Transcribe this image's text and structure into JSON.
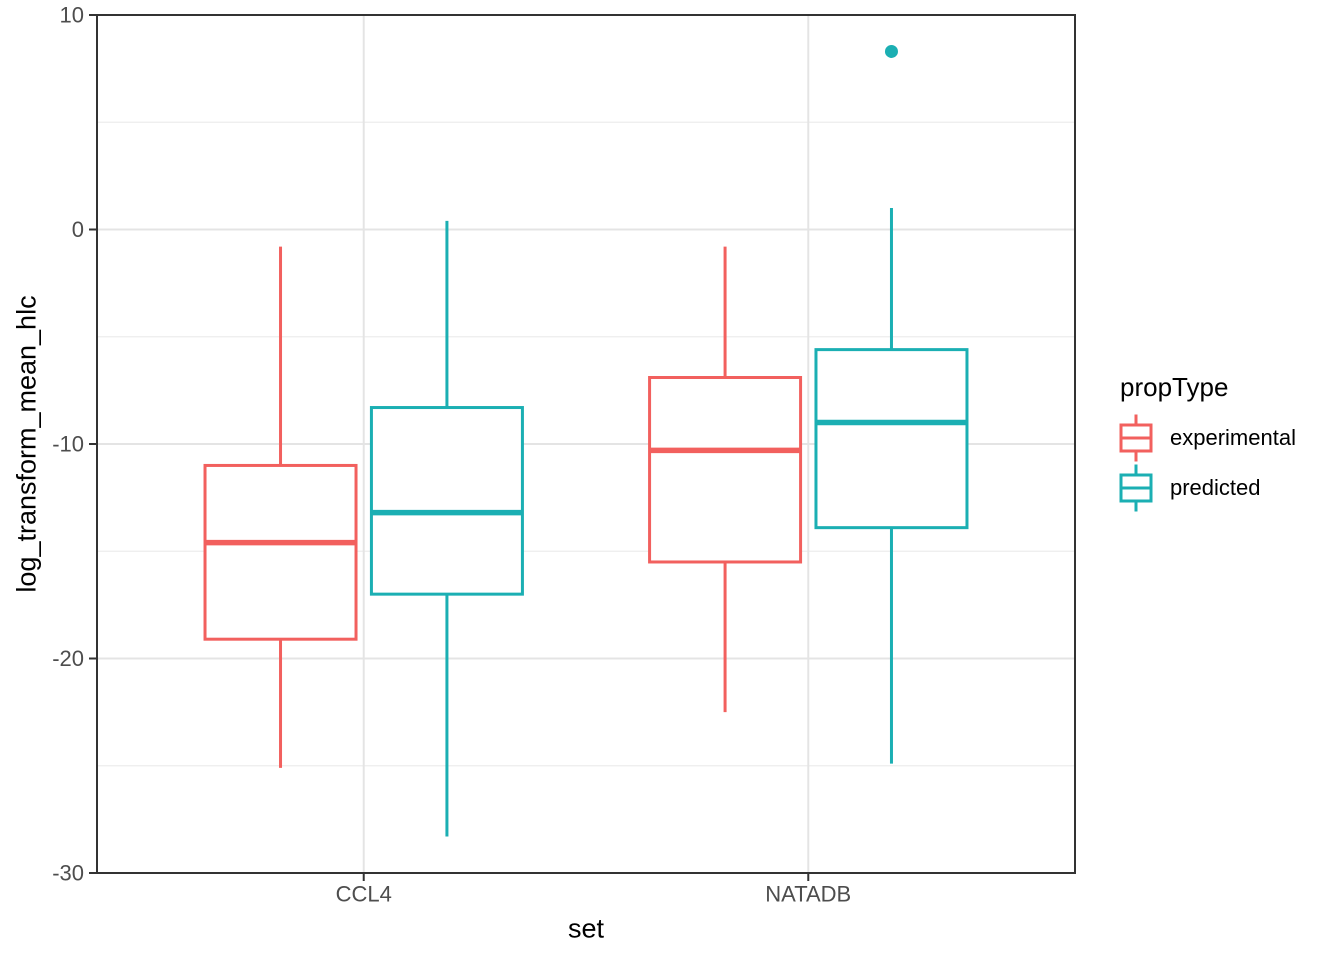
{
  "chart_data": {
    "type": "boxplot",
    "orientation": "vertical",
    "title": "",
    "xlabel": "set",
    "ylabel": "log_transform_mean_hlc",
    "categories": [
      "CCL4",
      "NATADB"
    ],
    "ylim": [
      -30,
      10
    ],
    "y_major_ticks": [
      10,
      0,
      -10,
      -20,
      -30
    ],
    "y_minor_gridlines": [
      5,
      -5,
      -15,
      -25
    ],
    "grid": "on",
    "legend": {
      "title": "propType",
      "position": "right",
      "entries": [
        {
          "label": "experimental",
          "color": "#F2605E"
        },
        {
          "label": "predicted",
          "color": "#1BAFB3"
        }
      ]
    },
    "series": [
      {
        "name": "experimental",
        "color": "#F2605E",
        "boxes": [
          {
            "category": "CCL4",
            "whisker_low": -25.1,
            "q1": -19.1,
            "median": -14.6,
            "q3": -11.0,
            "whisker_high": -0.8,
            "outliers": []
          },
          {
            "category": "NATADB",
            "whisker_low": -22.5,
            "q1": -15.5,
            "median": -10.3,
            "q3": -6.9,
            "whisker_high": -0.8,
            "outliers": []
          }
        ]
      },
      {
        "name": "predicted",
        "color": "#1BAFB3",
        "boxes": [
          {
            "category": "CCL4",
            "whisker_low": -28.3,
            "q1": -17.0,
            "median": -13.2,
            "q3": -8.3,
            "whisker_high": 0.4,
            "outliers": []
          },
          {
            "category": "NATADB",
            "whisker_low": -24.9,
            "q1": -13.9,
            "median": -9.0,
            "q3": -5.6,
            "whisker_high": 1.0,
            "outliers": [
              8.3
            ]
          }
        ]
      }
    ],
    "theme": {
      "background": "#FFFFFF",
      "panel_border_color": "#333333",
      "grid_major_color": "#E4E4E4",
      "grid_minor_color": "#EDEDED",
      "tick_color": "#333333",
      "tick_label_color": "#4D4D4D",
      "title_color": "#000000",
      "box_fill": "#FFFFFF"
    }
  }
}
